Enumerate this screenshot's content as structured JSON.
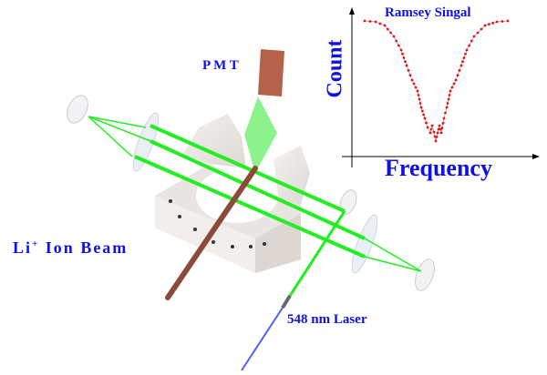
{
  "labels": {
    "pmt": "P M T",
    "ion_beam_prefix": "Li",
    "ion_beam_sup": "+",
    "ion_beam": " Ion Beam",
    "laser": "548 nm Laser"
  },
  "inset_plot": {
    "title": "Ramsey Singal",
    "xlabel": "Frequency",
    "ylabel": "Count",
    "curve_color": "#ee1111"
  },
  "colors": {
    "laser_beam": "#22ee22",
    "ion_beam": "#8b4a3a",
    "pmt": "#b5624a",
    "text": "#1010e8"
  }
}
